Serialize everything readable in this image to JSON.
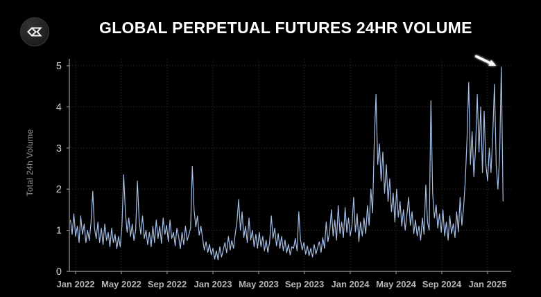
{
  "header": {
    "title": "GLOBAL PERPETUAL FUTURES 24HR VOLUME",
    "logo_icon": "diamond-sigma-logo"
  },
  "colors": {
    "background": "#000000",
    "title": "#ffffff",
    "line": "#a6c0ea",
    "axis": "#9b9b9b",
    "y_tick_label": "#d2d2d2",
    "x_tick_label": "#b5b5b5",
    "grid": "#2a2a2a",
    "annotation_arrow": "#ffffff"
  },
  "chart_data": {
    "type": "line",
    "title": "GLOBAL PERPETUAL FUTURES 24HR VOLUME",
    "xlabel": "",
    "ylabel": "Total 24h Volume",
    "ylim": [
      0,
      5.17
    ],
    "yticks": [
      0,
      1,
      2,
      3,
      4,
      5
    ],
    "xticks": {
      "labels": [
        "Jan 2022",
        "May 2022",
        "Sep 2022",
        "Jan 2023",
        "May 2023",
        "Sep 2023",
        "Jan 2024",
        "May 2024",
        "Sep 2024",
        "Jan 2025"
      ],
      "months_from_jan2022": [
        0,
        4,
        8,
        12,
        16,
        20,
        24,
        28,
        32,
        36
      ]
    },
    "grid": true,
    "legend": null,
    "series_name": "Global perpetual futures 24h volume",
    "x_start_month": -0.45,
    "x_step_month": 0.15,
    "values": [
      1.25,
      0.9,
      1.4,
      0.85,
      1.1,
      0.7,
      1.35,
      0.9,
      1.15,
      0.7,
      1.0,
      0.75,
      1.2,
      1.95,
      1.05,
      0.8,
      1.2,
      0.7,
      1.05,
      0.65,
      1.15,
      0.75,
      0.95,
      0.6,
      1.05,
      0.7,
      0.9,
      0.55,
      0.85,
      0.6,
      1.1,
      2.35,
      1.45,
      0.95,
      1.3,
      0.85,
      1.15,
      0.75,
      1.0,
      2.2,
      1.25,
      0.9,
      1.35,
      0.8,
      1.0,
      0.65,
      0.95,
      0.6,
      1.1,
      0.7,
      1.25,
      0.8,
      1.1,
      0.68,
      1.3,
      0.9,
      1.12,
      0.72,
      1.25,
      0.8,
      0.95,
      0.62,
      1.05,
      0.85,
      0.55,
      0.95,
      0.65,
      1.1,
      0.75,
      0.9,
      1.05,
      2.55,
      1.5,
      1.08,
      1.35,
      0.88,
      1.1,
      0.8,
      0.52,
      0.72,
      0.46,
      0.66,
      0.4,
      0.56,
      0.3,
      0.5,
      0.28,
      0.6,
      0.35,
      0.52,
      0.7,
      0.45,
      0.85,
      0.52,
      0.75,
      0.56,
      0.92,
      1.2,
      1.75,
      1.0,
      1.45,
      0.82,
      1.1,
      0.7,
      1.3,
      0.76,
      1.0,
      0.6,
      0.9,
      0.56,
      0.95,
      0.6,
      0.85,
      0.5,
      0.76,
      0.46,
      0.7,
      1.35,
      0.8,
      1.05,
      0.62,
      0.92,
      0.56,
      0.85,
      0.5,
      0.76,
      0.45,
      0.66,
      0.4,
      0.6,
      0.56,
      0.8,
      0.5,
      1.45,
      0.78,
      0.52,
      0.7,
      0.42,
      0.62,
      0.38,
      0.56,
      0.35,
      0.65,
      0.42,
      0.58,
      0.72,
      0.46,
      0.82,
      0.56,
      1.2,
      0.72,
      0.96,
      1.5,
      0.86,
      1.25,
      0.76,
      1.6,
      0.92,
      1.2,
      0.82,
      1.55,
      0.95,
      1.3,
      0.86,
      1.12,
      1.8,
      0.96,
      1.4,
      0.72,
      1.2,
      0.86,
      1.3,
      0.92,
      1.6,
      1.12,
      2.0,
      1.42,
      3.2,
      4.3,
      2.6,
      3.1,
      2.2,
      2.9,
      1.9,
      2.6,
      1.7,
      2.25,
      1.45,
      1.9,
      1.2,
      2.0,
      1.32,
      1.7,
      1.1,
      1.5,
      1.0,
      1.38,
      1.8,
      1.12,
      1.45,
      0.92,
      1.25,
      0.86,
      1.1,
      0.76,
      1.3,
      0.9,
      2.1,
      1.2,
      1.0,
      4.15,
      1.9,
      1.3,
      1.62,
      1.05,
      1.4,
      0.95,
      1.5,
      0.86,
      1.2,
      0.76,
      1.35,
      0.92,
      1.16,
      0.82,
      1.45,
      0.96,
      1.8,
      1.12,
      1.55,
      2.2,
      3.2,
      4.6,
      2.6,
      3.4,
      2.3,
      3.0,
      4.3,
      2.9,
      4.0,
      2.4,
      3.9,
      2.6,
      2.2,
      3.0,
      2.4,
      3.3,
      4.55,
      2.6,
      2.0,
      2.8,
      4.97,
      1.7
    ],
    "annotation": {
      "type": "arrow",
      "from": {
        "month": 35.0,
        "value": 5.23
      },
      "to": {
        "month": 36.75,
        "value": 5.0
      },
      "meaning": "points at record peak near 5 in early 2025"
    }
  }
}
